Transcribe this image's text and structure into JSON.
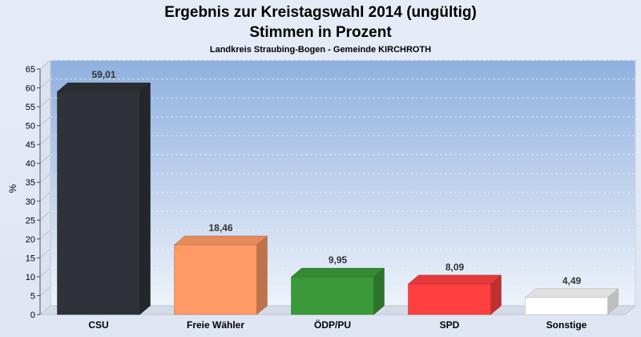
{
  "chart_data": {
    "type": "bar",
    "title": "Ergebnis zur Kreistagswahl 2014 (ungültig)",
    "title_line2": "Stimmen in Prozent",
    "subtitle": "Landkreis Straubing-Bogen - Gemeinde KIRCHROTH",
    "ylabel": "%",
    "xlabel": "",
    "ylim": [
      0,
      65
    ],
    "yticks": [
      0,
      5,
      10,
      15,
      20,
      25,
      30,
      35,
      40,
      45,
      50,
      55,
      60,
      65
    ],
    "categories": [
      "CSU",
      "Freie Wähler",
      "ÖDP/PU",
      "SPD",
      "Sonstige"
    ],
    "values": [
      59.01,
      18.46,
      9.95,
      8.09,
      4.49
    ],
    "value_labels": [
      "59,01",
      "18,46",
      "9,95",
      "8,09",
      "4,49"
    ],
    "colors": [
      "#2f3238",
      "#ff9966",
      "#3a9a3a",
      "#ff4040",
      "#ffffff"
    ],
    "grid": true,
    "legend": "none"
  }
}
